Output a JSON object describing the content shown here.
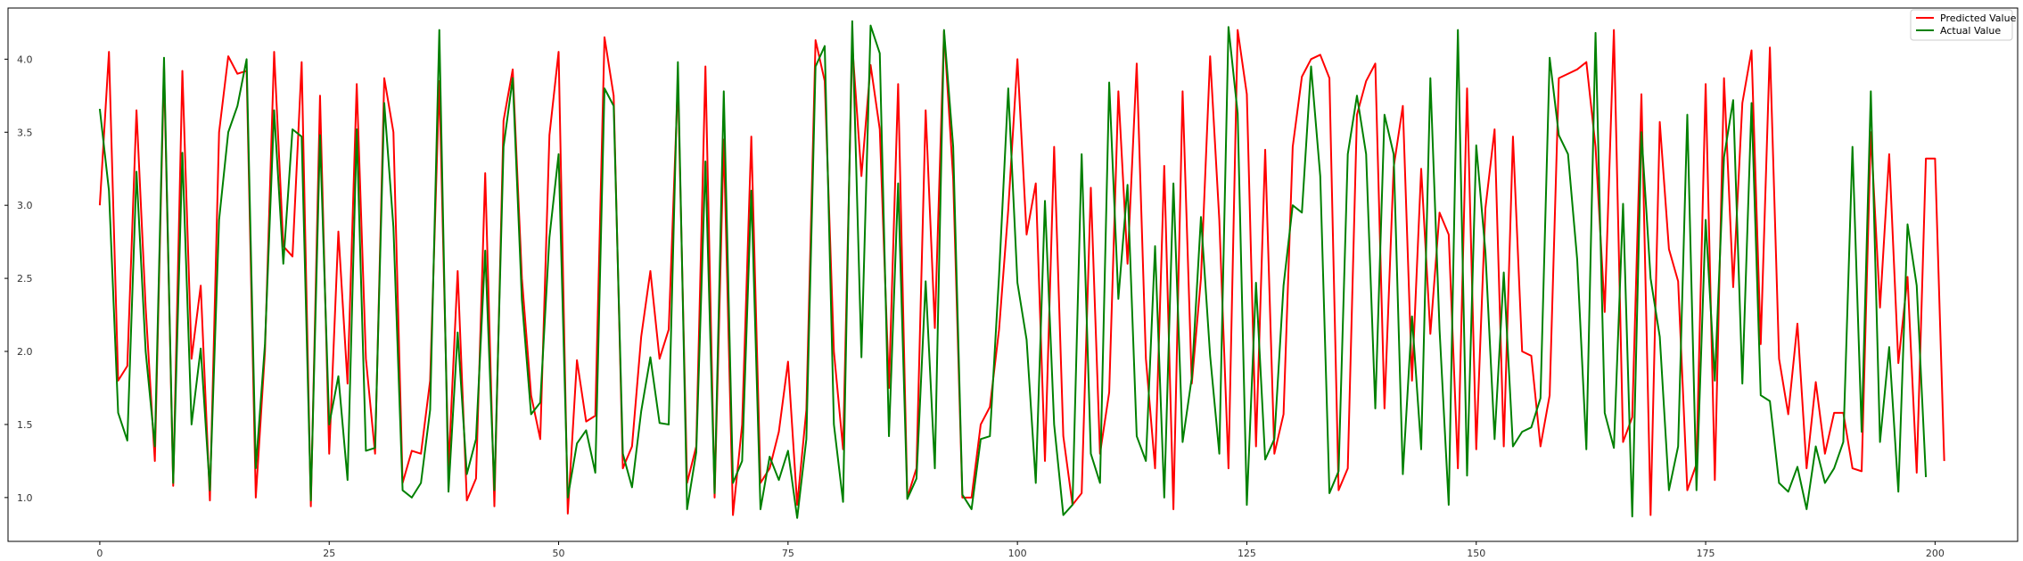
{
  "chart_data": {
    "type": "line",
    "title": "",
    "xlabel": "",
    "ylabel": "",
    "xlim": [
      -10,
      209
    ],
    "ylim": [
      0.7,
      4.35
    ],
    "x_ticks": [
      0,
      25,
      50,
      75,
      100,
      125,
      150,
      175,
      200
    ],
    "y_ticks": [
      1.0,
      1.5,
      2.0,
      2.5,
      3.0,
      3.5,
      4.0
    ],
    "x_tick_labels": [
      "0",
      "25",
      "50",
      "75",
      "100",
      "125",
      "150",
      "175",
      "200"
    ],
    "y_tick_labels": [
      "1.0",
      "1.5",
      "2.0",
      "2.5",
      "3.0",
      "3.5",
      "4.0"
    ],
    "grid": false,
    "legend_position": "top-right",
    "series": [
      {
        "name": "Predicted Value",
        "color": "#ff0000",
        "values": [
          3.0,
          4.05,
          1.8,
          1.9,
          3.65,
          2.3,
          1.25,
          3.95,
          1.08,
          3.92,
          1.95,
          2.45,
          0.98,
          3.5,
          4.02,
          3.9,
          3.92,
          1.0,
          2.0,
          4.05,
          2.72,
          2.65,
          3.98,
          0.94,
          3.75,
          1.3,
          2.82,
          1.78,
          3.83,
          1.95,
          1.3,
          3.87,
          3.5,
          1.1,
          1.32,
          1.3,
          1.8,
          3.85,
          1.2,
          2.55,
          0.98,
          1.13,
          3.22,
          0.94,
          3.58,
          3.93,
          2.5,
          1.7,
          1.4,
          3.48,
          4.05,
          0.89,
          1.94,
          1.52,
          1.56,
          4.15,
          3.75,
          1.2,
          1.35,
          2.1,
          2.55,
          1.95,
          2.15,
          3.85,
          1.1,
          1.35,
          3.95,
          1.0,
          3.45,
          0.88,
          1.5,
          3.47,
          1.1,
          1.2,
          1.45,
          1.93,
          0.95,
          1.6,
          4.13,
          3.85,
          2.0,
          1.33,
          4.1,
          3.2,
          3.96,
          3.52,
          1.75,
          3.83,
          1.0,
          1.2,
          3.65,
          2.16,
          4.19,
          3.18,
          1.0,
          1.0,
          1.5,
          1.62,
          2.15,
          2.97,
          4.0,
          2.8,
          3.15,
          1.25,
          3.4,
          1.42,
          0.95,
          1.03,
          3.12,
          1.3,
          1.72,
          3.78,
          2.6,
          3.97,
          1.95,
          1.2,
          3.27,
          0.92,
          3.78,
          1.78,
          2.5,
          4.02,
          2.9,
          1.2,
          4.2,
          3.76,
          1.35,
          3.38,
          1.3,
          1.57,
          3.4,
          3.88,
          4.0,
          4.03,
          3.87,
          1.05,
          1.2,
          3.62,
          3.85,
          3.97,
          1.61,
          3.26,
          3.68,
          1.8,
          3.25,
          2.12,
          2.95,
          2.8,
          1.2,
          3.8,
          1.33,
          2.98,
          3.52,
          1.35,
          3.47,
          2.0,
          1.97,
          1.35,
          1.7,
          3.87,
          3.9,
          3.93,
          3.98,
          3.4,
          2.27,
          4.2,
          1.38,
          1.55,
          3.76,
          0.88,
          3.57,
          2.7,
          2.48,
          1.05,
          1.23,
          3.83,
          1.12,
          3.87,
          2.44,
          3.7,
          4.06,
          2.05,
          4.08,
          1.95,
          1.57,
          2.19,
          1.2,
          1.79,
          1.3,
          1.58,
          1.58,
          1.2,
          1.18,
          3.5,
          2.3,
          3.35,
          1.92,
          2.51,
          1.17,
          3.32,
          3.32,
          1.25
        ]
      },
      {
        "name": "Actual Value",
        "color": "#008000",
        "values": [
          3.66,
          3.1,
          1.58,
          1.39,
          3.23,
          2.0,
          1.35,
          4.01,
          1.1,
          3.36,
          1.5,
          2.02,
          1.05,
          2.9,
          3.5,
          3.68,
          4.0,
          1.2,
          2.05,
          3.65,
          2.6,
          3.52,
          3.47,
          0.98,
          3.48,
          1.5,
          1.83,
          1.12,
          3.52,
          1.32,
          1.34,
          3.7,
          2.85,
          1.05,
          1.0,
          1.1,
          1.6,
          4.2,
          1.04,
          2.13,
          1.16,
          1.4,
          2.69,
          1.05,
          3.4,
          3.87,
          2.35,
          1.57,
          1.65,
          2.78,
          3.35,
          1.0,
          1.37,
          1.46,
          1.17,
          3.8,
          3.68,
          1.3,
          1.07,
          1.59,
          1.96,
          1.51,
          1.5,
          3.98,
          0.92,
          1.31,
          3.3,
          1.03,
          3.78,
          1.1,
          1.25,
          3.1,
          0.92,
          1.28,
          1.12,
          1.32,
          0.86,
          1.4,
          3.95,
          4.09,
          1.5,
          0.97,
          4.26,
          1.96,
          4.23,
          4.04,
          1.42,
          3.15,
          0.99,
          1.13,
          2.48,
          1.2,
          4.2,
          3.4,
          1.02,
          0.92,
          1.4,
          1.42,
          2.52,
          3.8,
          2.47,
          2.08,
          1.1,
          3.03,
          1.5,
          0.88,
          0.95,
          3.35,
          1.3,
          1.1,
          3.84,
          2.36,
          3.14,
          1.42,
          1.25,
          2.72,
          1.0,
          3.15,
          1.38,
          1.82,
          2.92,
          1.97,
          1.3,
          4.22,
          3.63,
          0.95,
          2.47,
          1.26,
          1.4,
          2.45,
          3.0,
          2.95,
          3.95,
          3.2,
          1.03,
          1.18,
          3.35,
          3.75,
          3.35,
          1.61,
          3.62,
          3.35,
          1.16,
          2.24,
          1.33,
          3.87,
          2.15,
          0.95,
          4.2,
          1.15,
          3.41,
          2.68,
          1.4,
          2.54,
          1.35,
          1.45,
          1.48,
          1.68,
          4.01,
          3.48,
          3.35,
          2.63,
          1.33,
          4.18,
          1.58,
          1.34,
          3.01,
          0.87,
          3.5,
          2.5,
          2.1,
          1.05,
          1.35,
          3.62,
          1.05,
          2.9,
          1.8,
          3.33,
          3.72,
          1.78,
          3.7,
          1.7,
          1.66,
          1.1,
          1.04,
          1.21,
          0.92,
          1.35,
          1.1,
          1.2,
          1.38,
          3.4,
          1.45,
          3.78,
          1.38,
          2.03,
          1.04,
          2.87,
          2.45,
          1.14
        ]
      }
    ]
  }
}
